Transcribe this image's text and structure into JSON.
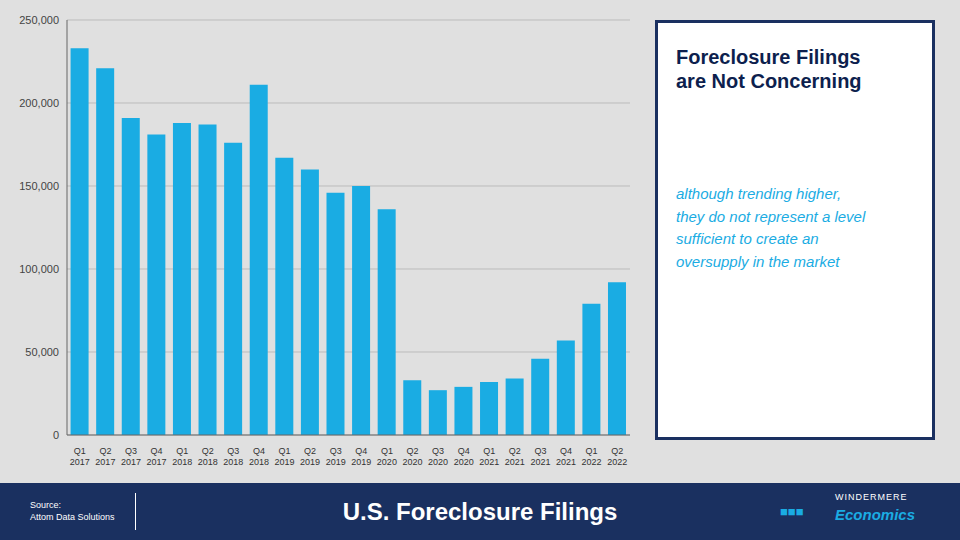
{
  "chart_data": {
    "type": "bar",
    "title": "U.S. Foreclosure Filings",
    "categories": [
      "Q1\n2017",
      "Q2\n2017",
      "Q3\n2017",
      "Q4\n2017",
      "Q1\n2018",
      "Q2\n2018",
      "Q3\n2018",
      "Q4\n2018",
      "Q1\n2019",
      "Q2\n2019",
      "Q3\n2019",
      "Q4\n2019",
      "Q1\n2020",
      "Q2\n2020",
      "Q3\n2020",
      "Q4\n2020",
      "Q1\n2021",
      "Q2\n2021",
      "Q3\n2021",
      "Q4\n2021",
      "Q1\n2022",
      "Q2\n2022"
    ],
    "values": [
      233000,
      221000,
      191000,
      181000,
      188000,
      187000,
      176000,
      211000,
      167000,
      160000,
      146000,
      150000,
      136000,
      33000,
      27000,
      29000,
      32000,
      34000,
      46000,
      57000,
      79000,
      92000
    ],
    "color": "#1aace3",
    "ylim": [
      0,
      250000
    ],
    "yticks": [
      0,
      {
        "value": 50000,
        "label": "50,000"
      },
      {
        "value": 100000,
        "label": "100,000"
      },
      {
        "value": 150000,
        "label": "150,000"
      },
      {
        "value": 200000,
        "label": "200,000"
      },
      {
        "value": 250000,
        "label": "250,000"
      }
    ],
    "grid": true,
    "annotations": [
      "Foreclosure Filings\nare Not Concerning",
      "although trending higher,\nthey do not represent a level\nsufficient to create an\noversupply in the market",
      "Source:\nAttom Data Solutions",
      "■■■",
      "WINDERMERE",
      "Economics"
    ]
  }
}
